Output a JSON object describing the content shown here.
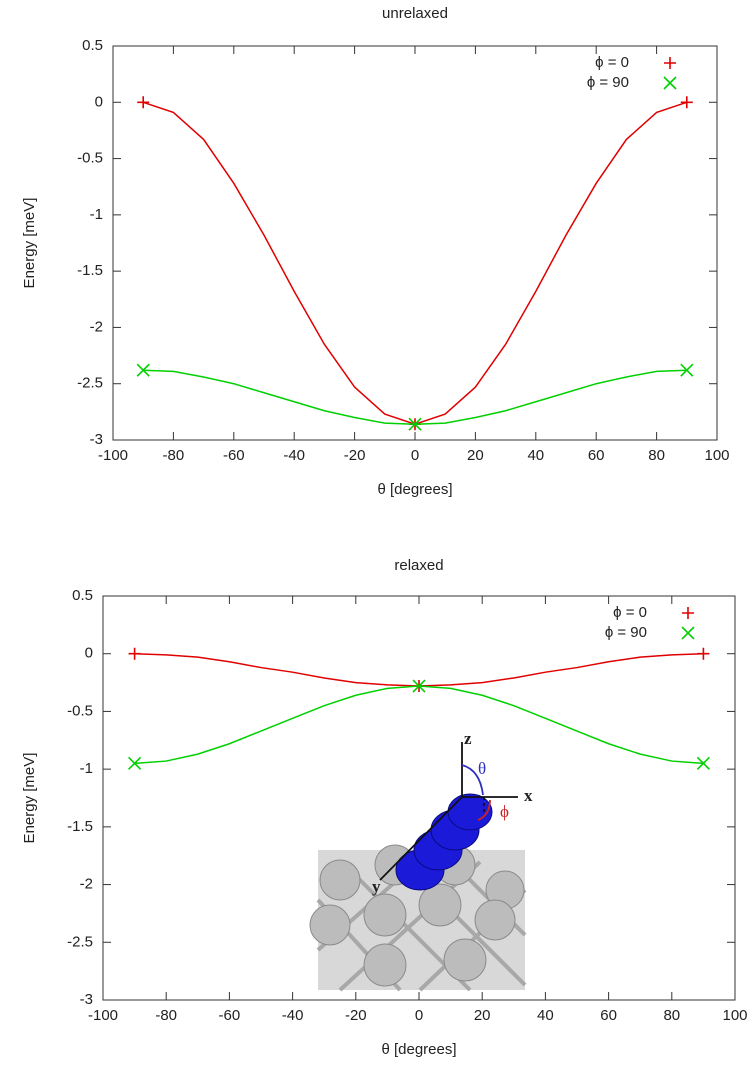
{
  "chart_data": [
    {
      "type": "line",
      "title": "unrelaxed",
      "xlabel": "θ [degrees]",
      "ylabel": "Energy [meV]",
      "x": [
        -90,
        -80,
        -70,
        -60,
        -50,
        -40,
        -30,
        -20,
        -10,
        0,
        10,
        20,
        30,
        40,
        50,
        60,
        70,
        80,
        90
      ],
      "xlim": [
        -100,
        100
      ],
      "xticks": [
        -100,
        -80,
        -60,
        -40,
        -20,
        0,
        20,
        40,
        60,
        80,
        100
      ],
      "ylim": [
        -3,
        0.5
      ],
      "yticks": [
        0.5,
        0,
        -0.5,
        -1,
        -1.5,
        -2,
        -2.5,
        -3
      ],
      "legend": "upper right",
      "series": [
        {
          "name": "ϕ = 0",
          "color": "#e00000",
          "marker": "+",
          "marker_x": [
            -90,
            0,
            90
          ],
          "values": [
            0,
            -0.09,
            -0.33,
            -0.72,
            -1.18,
            -1.68,
            -2.15,
            -2.53,
            -2.77,
            -2.86,
            -2.77,
            -2.53,
            -2.15,
            -1.68,
            -1.18,
            -0.72,
            -0.33,
            -0.09,
            0
          ]
        },
        {
          "name": "ϕ = 90",
          "color": "#00d000",
          "marker": "x",
          "marker_x": [
            -90,
            0,
            90
          ],
          "values": [
            -2.38,
            -2.39,
            -2.44,
            -2.5,
            -2.58,
            -2.66,
            -2.74,
            -2.8,
            -2.85,
            -2.86,
            -2.85,
            -2.8,
            -2.74,
            -2.66,
            -2.58,
            -2.5,
            -2.44,
            -2.39,
            -2.38
          ]
        }
      ]
    },
    {
      "type": "line",
      "title": "relaxed",
      "xlabel": "θ [degrees]",
      "ylabel": "Energy [meV]",
      "x": [
        -90,
        -80,
        -70,
        -60,
        -50,
        -40,
        -30,
        -20,
        -10,
        0,
        10,
        20,
        30,
        40,
        50,
        60,
        70,
        80,
        90
      ],
      "xlim": [
        -100,
        100
      ],
      "xticks": [
        -100,
        -80,
        -60,
        -40,
        -20,
        0,
        20,
        40,
        60,
        80,
        100
      ],
      "ylim": [
        -3,
        0.5
      ],
      "yticks": [
        0.5,
        0,
        -0.5,
        -1,
        -1.5,
        -2,
        -2.5,
        -3
      ],
      "legend": "upper right",
      "series": [
        {
          "name": "ϕ = 0",
          "color": "#e00000",
          "marker": "+",
          "marker_x": [
            -90,
            0,
            90
          ],
          "values": [
            0,
            -0.01,
            -0.03,
            -0.07,
            -0.12,
            -0.16,
            -0.21,
            -0.25,
            -0.27,
            -0.28,
            -0.27,
            -0.25,
            -0.21,
            -0.16,
            -0.12,
            -0.07,
            -0.03,
            -0.01,
            0
          ]
        },
        {
          "name": "ϕ = 90",
          "color": "#00d000",
          "marker": "x",
          "marker_x": [
            -90,
            0,
            90
          ],
          "values": [
            -0.95,
            -0.93,
            -0.87,
            -0.78,
            -0.67,
            -0.56,
            -0.45,
            -0.36,
            -0.3,
            -0.28,
            -0.3,
            -0.36,
            -0.45,
            -0.56,
            -0.67,
            -0.78,
            -0.87,
            -0.93,
            -0.95
          ]
        }
      ],
      "inset_labels": [
        "z",
        "x",
        "y",
        "θ",
        "ϕ"
      ]
    }
  ]
}
